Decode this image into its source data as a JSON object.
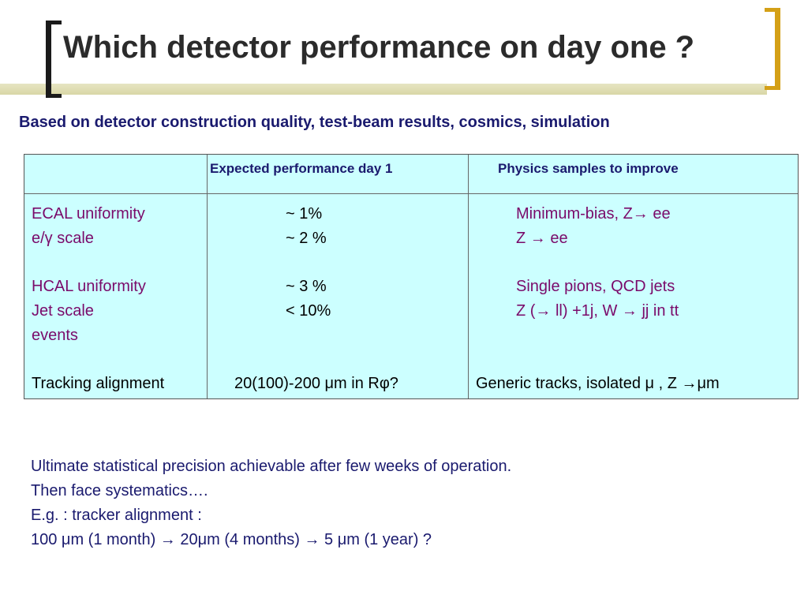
{
  "slide": {
    "title": "Which detector performance on day one ?",
    "subtitle": "Based on detector construction quality, test-beam results, cosmics, simulation"
  },
  "table": {
    "headers": {
      "col1": "",
      "col2": "Expected performance day 1",
      "col3": "Physics samples to improve"
    },
    "rows": [
      {
        "label": "ECAL    uniformity",
        "expected": "~ 1%",
        "samples": "Minimum-bias, Z→ ee"
      },
      {
        "label": "e/γ    scale",
        "expected": "~ 2 %",
        "samples": " Z → ee"
      },
      {
        "label": "HCAL    uniformity",
        "expected": "~ 3 %",
        "samples": "Single pions, QCD jets"
      },
      {
        "label": "Jet scale",
        "expected": "< 10%",
        "samples": "Z (→ ll) +1j, W → jj  in  tt"
      },
      {
        "label": "events",
        "expected": "",
        "samples": ""
      },
      {
        "label": "Tracking alignment",
        "expected": "20(100)-200 μm in  Rφ?",
        "samples": "Generic tracks, isolated μ , Z →μm"
      }
    ]
  },
  "notes": [
    "Ultimate statistical precision  achievable after few weeks of operation.",
    "Then face systematics….",
    "E.g. : tracker alignment :",
    "100 μm (1 month) → 20μm (4 months) → 5 μm (1 year) ?"
  ]
}
